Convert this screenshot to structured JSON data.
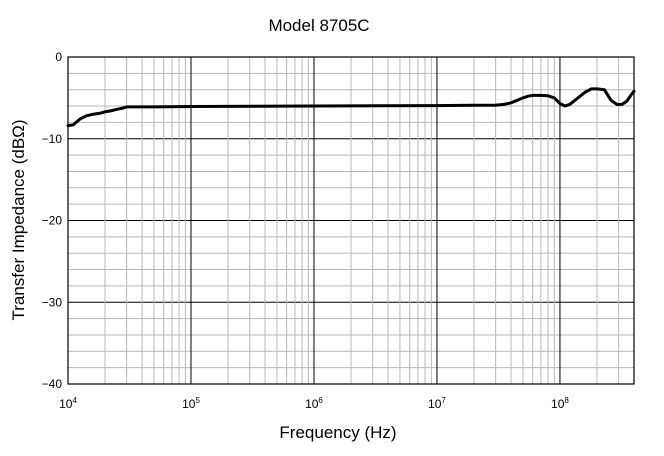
{
  "chart_data": {
    "type": "line",
    "title": "Model 8705C",
    "xlabel": "Frequency (Hz)",
    "ylabel": "Transfer Impedance (dBΩ)",
    "xscale": "log",
    "xlim": [
      10000,
      400000000
    ],
    "ylim": [
      -40,
      0
    ],
    "grid": true,
    "x_ticks": [
      {
        "base": "10",
        "exp": "4"
      },
      {
        "base": "10",
        "exp": "5"
      },
      {
        "base": "10",
        "exp": "6"
      },
      {
        "base": "10",
        "exp": "7"
      },
      {
        "base": "10",
        "exp": "8"
      }
    ],
    "y_ticks": [
      "0",
      "−10",
      "−20",
      "−30",
      "−40"
    ],
    "y_tick_values": [
      0,
      -10,
      -20,
      -30,
      -40
    ],
    "series": [
      {
        "x": [
          10000,
          11000,
          12500,
          14000,
          16000,
          18000,
          20000,
          22000,
          25000,
          28000,
          30000,
          50000,
          100000,
          1000000,
          10000000,
          20000000,
          30000000,
          35000000,
          40000000,
          45000000,
          50000000,
          55000000,
          60000000,
          70000000,
          80000000,
          90000000,
          100000000,
          110000000,
          120000000,
          140000000,
          160000000,
          180000000,
          200000000,
          230000000,
          260000000,
          290000000,
          320000000,
          350000000,
          380000000,
          400000000
        ],
        "y": [
          -8.4,
          -8.3,
          -7.6,
          -7.2,
          -7.0,
          -6.9,
          -6.7,
          -6.6,
          -6.4,
          -6.25,
          -6.1,
          -6.1,
          -6.05,
          -6.0,
          -5.95,
          -5.9,
          -5.9,
          -5.8,
          -5.6,
          -5.3,
          -5.0,
          -4.8,
          -4.7,
          -4.7,
          -4.75,
          -5.0,
          -5.7,
          -6.0,
          -5.8,
          -5.0,
          -4.3,
          -3.9,
          -3.9,
          -4.0,
          -5.3,
          -5.8,
          -5.8,
          -5.4,
          -4.6,
          -4.2
        ]
      }
    ]
  }
}
